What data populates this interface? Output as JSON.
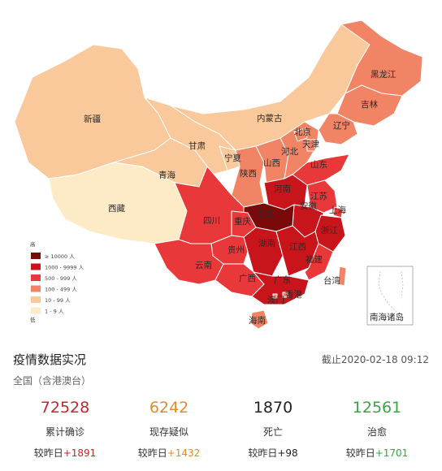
{
  "map": {
    "provinces": {
      "heilongjiang": "黑龙江",
      "jilin": "吉林",
      "liaoning": "辽宁",
      "neimenggu": "内蒙古",
      "xinjiang": "新疆",
      "gansu": "甘肃",
      "ningxia": "宁夏",
      "qinghai": "青海",
      "xizang": "西藏",
      "beijing": "北京",
      "tianjin": "天津",
      "hebei": "河北",
      "shanxi": "山西",
      "shaanxi": "陕西",
      "shandong": "山东",
      "henan": "河南",
      "jiangsu": "江苏",
      "anhui": "安徽",
      "shanghai": "上海",
      "hubei": "湖北",
      "sichuan": "四川",
      "chongqing": "重庆",
      "zhejiang": "浙江",
      "jiangxi": "江西",
      "hunan": "湖南",
      "guizhou": "贵州",
      "yunnan": "云南",
      "fujian": "福建",
      "guangxi": "广西",
      "guangdong": "广东",
      "taiwan": "台湾",
      "aomen": "澳门",
      "xianggang": "香港",
      "hainan": "海南",
      "nanhai": "南海诸岛"
    },
    "legend": {
      "title": "高",
      "items": [
        {
          "label": "≥ 10000 人",
          "color": "#7a0a0a"
        },
        {
          "label": "1000 - 9999 人",
          "color": "#c8151b"
        },
        {
          "label": "500 - 999 人",
          "color": "#e8383a"
        },
        {
          "label": "100 - 499 人",
          "color": "#f08465"
        },
        {
          "label": "10 - 99 人",
          "color": "#f9c99b"
        },
        {
          "label": "1 - 9 人",
          "color": "#fdebc8"
        }
      ],
      "bottom": "低"
    }
  },
  "panel": {
    "title": "疫情数据实况",
    "time": "截止2020-02-18 09:12",
    "scope": "全国（含港澳台）",
    "delta_prefix": "较昨日",
    "stats": [
      {
        "value": "72528",
        "label": "累计确诊",
        "delta": "+1891",
        "color": "#c0262d"
      },
      {
        "value": "6242",
        "label": "现存疑似",
        "delta": "+1432",
        "color": "#e38a2a"
      },
      {
        "value": "1870",
        "label": "死亡",
        "delta": "+98",
        "color": "#222222"
      },
      {
        "value": "12561",
        "label": "治愈",
        "delta": "+1701",
        "color": "#3aa345"
      }
    ]
  }
}
